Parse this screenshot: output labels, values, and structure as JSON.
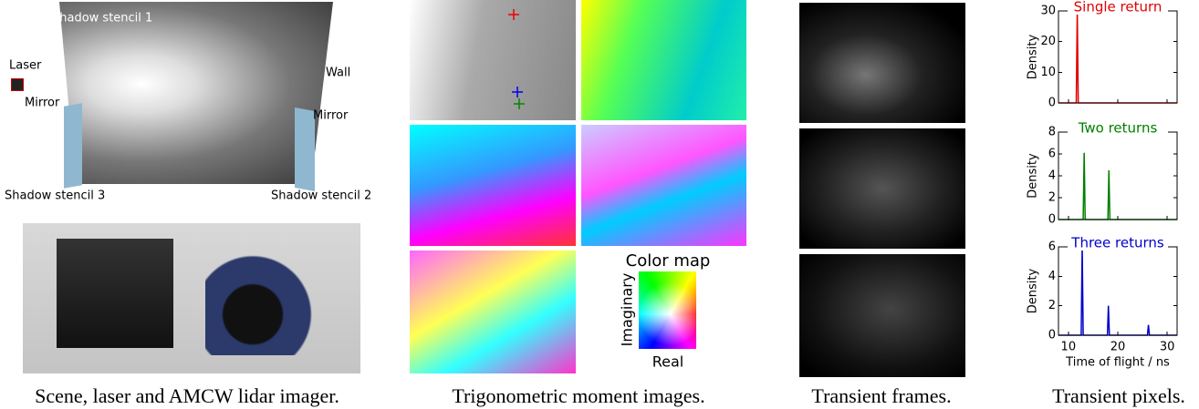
{
  "scene": {
    "labels": [
      "Shadow stencil 1",
      "Laser",
      "Wall",
      "Mirror",
      "Mirror",
      "Shadow stencil 3",
      "Shadow stencil 2"
    ]
  },
  "color_map": {
    "title": "Color map",
    "x_label": "Real",
    "y_label": "Imaginary"
  },
  "captions": [
    "Scene, laser and AMCW lidar imager.",
    "Trigonometric moment images.",
    "Transient frames.",
    "Transient pixels."
  ],
  "chart_data": [
    {
      "type": "line",
      "title": "Single return",
      "color": "#e00000",
      "y_label": "Density",
      "x": [
        8,
        11.6,
        11.8,
        12.0,
        32
      ],
      "values": [
        0,
        0,
        30,
        0,
        0
      ],
      "xlim": [
        8,
        32
      ],
      "xticks": [
        10,
        20,
        30
      ],
      "ylim": [
        0,
        30
      ],
      "yticks": [
        0,
        10,
        20,
        30
      ]
    },
    {
      "type": "line",
      "title": "Two returns",
      "color": "#008000",
      "y_label": "Density",
      "x": [
        8,
        13.0,
        13.2,
        13.4,
        18.0,
        18.2,
        18.4,
        32
      ],
      "values": [
        0,
        0,
        6.1,
        0,
        0,
        4.5,
        0,
        0
      ],
      "xlim": [
        8,
        32
      ],
      "xticks": [
        10,
        20,
        30
      ],
      "ylim": [
        0,
        8
      ],
      "yticks": [
        0,
        2,
        4,
        6,
        8
      ]
    },
    {
      "type": "line",
      "title": "Three returns",
      "color": "#0000cc",
      "y_label": "Density",
      "x_label": "Time of flight / ns",
      "x": [
        8,
        12.6,
        12.8,
        13.0,
        17.9,
        18.1,
        18.3,
        26.0,
        26.2,
        26.4,
        32
      ],
      "values": [
        0,
        0,
        6,
        0,
        0,
        2,
        0,
        0,
        0.7,
        0,
        0
      ],
      "xlim": [
        8,
        32
      ],
      "xticks": [
        10,
        20,
        30
      ],
      "ylim": [
        0,
        6
      ],
      "yticks": [
        0,
        2,
        4,
        6
      ]
    }
  ]
}
